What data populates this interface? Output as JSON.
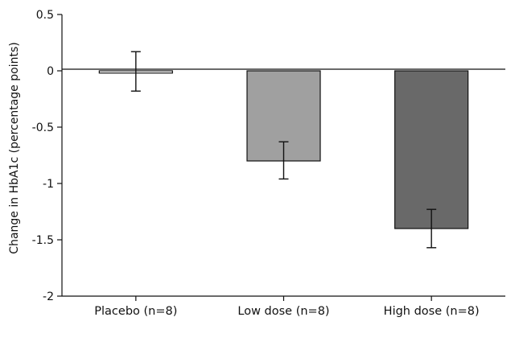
{
  "chart_data": {
    "type": "bar",
    "title": "",
    "xlabel": "",
    "ylabel": "Change in HbA1c (percentage points)",
    "ylim": [
      -2,
      0.5
    ],
    "yticks": [
      0.5,
      0,
      -0.5,
      -1,
      -1.5,
      -2
    ],
    "ytick_labels": [
      "0.5",
      "0",
      "-0.5",
      "-1",
      "-1.5",
      "-2"
    ],
    "categories": [
      "Placebo (n=8)",
      "Low dose (n=8)",
      "High dose (n=8)"
    ],
    "values": [
      -0.02,
      -0.8,
      -1.4
    ],
    "error_low": [
      -0.18,
      -0.96,
      -1.57
    ],
    "error_high": [
      0.17,
      -0.63,
      -1.23
    ],
    "bar_colors": [
      "#ffffff",
      "#a0a0a0",
      "#696969"
    ],
    "grid": false,
    "legend": "none"
  }
}
